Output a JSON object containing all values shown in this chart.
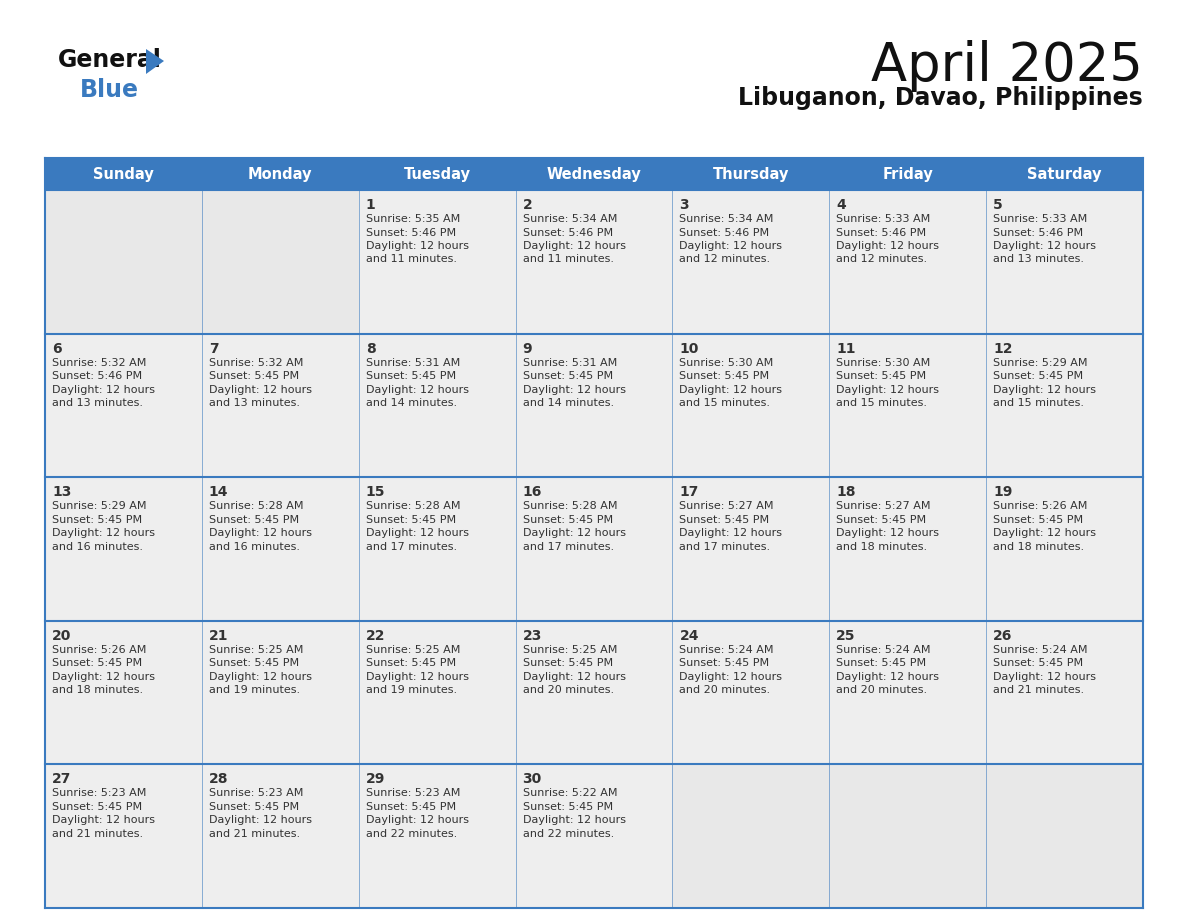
{
  "title": "April 2025",
  "subtitle": "Libuganon, Davao, Philippines",
  "header_color": "#3a7abf",
  "header_text_color": "#ffffff",
  "cell_bg_color": "#eeeeee",
  "empty_cell_bg_color": "#e8e8e8",
  "border_color": "#3a7abf",
  "text_color": "#333333",
  "days_of_week": [
    "Sunday",
    "Monday",
    "Tuesday",
    "Wednesday",
    "Thursday",
    "Friday",
    "Saturday"
  ],
  "calendar_data": [
    [
      null,
      null,
      {
        "day": 1,
        "sunrise": "5:35 AM",
        "sunset": "5:46 PM",
        "daylight_hours": 12,
        "daylight_minutes": 11
      },
      {
        "day": 2,
        "sunrise": "5:34 AM",
        "sunset": "5:46 PM",
        "daylight_hours": 12,
        "daylight_minutes": 11
      },
      {
        "day": 3,
        "sunrise": "5:34 AM",
        "sunset": "5:46 PM",
        "daylight_hours": 12,
        "daylight_minutes": 12
      },
      {
        "day": 4,
        "sunrise": "5:33 AM",
        "sunset": "5:46 PM",
        "daylight_hours": 12,
        "daylight_minutes": 12
      },
      {
        "day": 5,
        "sunrise": "5:33 AM",
        "sunset": "5:46 PM",
        "daylight_hours": 12,
        "daylight_minutes": 13
      }
    ],
    [
      {
        "day": 6,
        "sunrise": "5:32 AM",
        "sunset": "5:46 PM",
        "daylight_hours": 12,
        "daylight_minutes": 13
      },
      {
        "day": 7,
        "sunrise": "5:32 AM",
        "sunset": "5:45 PM",
        "daylight_hours": 12,
        "daylight_minutes": 13
      },
      {
        "day": 8,
        "sunrise": "5:31 AM",
        "sunset": "5:45 PM",
        "daylight_hours": 12,
        "daylight_minutes": 14
      },
      {
        "day": 9,
        "sunrise": "5:31 AM",
        "sunset": "5:45 PM",
        "daylight_hours": 12,
        "daylight_minutes": 14
      },
      {
        "day": 10,
        "sunrise": "5:30 AM",
        "sunset": "5:45 PM",
        "daylight_hours": 12,
        "daylight_minutes": 15
      },
      {
        "day": 11,
        "sunrise": "5:30 AM",
        "sunset": "5:45 PM",
        "daylight_hours": 12,
        "daylight_minutes": 15
      },
      {
        "day": 12,
        "sunrise": "5:29 AM",
        "sunset": "5:45 PM",
        "daylight_hours": 12,
        "daylight_minutes": 15
      }
    ],
    [
      {
        "day": 13,
        "sunrise": "5:29 AM",
        "sunset": "5:45 PM",
        "daylight_hours": 12,
        "daylight_minutes": 16
      },
      {
        "day": 14,
        "sunrise": "5:28 AM",
        "sunset": "5:45 PM",
        "daylight_hours": 12,
        "daylight_minutes": 16
      },
      {
        "day": 15,
        "sunrise": "5:28 AM",
        "sunset": "5:45 PM",
        "daylight_hours": 12,
        "daylight_minutes": 17
      },
      {
        "day": 16,
        "sunrise": "5:28 AM",
        "sunset": "5:45 PM",
        "daylight_hours": 12,
        "daylight_minutes": 17
      },
      {
        "day": 17,
        "sunrise": "5:27 AM",
        "sunset": "5:45 PM",
        "daylight_hours": 12,
        "daylight_minutes": 17
      },
      {
        "day": 18,
        "sunrise": "5:27 AM",
        "sunset": "5:45 PM",
        "daylight_hours": 12,
        "daylight_minutes": 18
      },
      {
        "day": 19,
        "sunrise": "5:26 AM",
        "sunset": "5:45 PM",
        "daylight_hours": 12,
        "daylight_minutes": 18
      }
    ],
    [
      {
        "day": 20,
        "sunrise": "5:26 AM",
        "sunset": "5:45 PM",
        "daylight_hours": 12,
        "daylight_minutes": 18
      },
      {
        "day": 21,
        "sunrise": "5:25 AM",
        "sunset": "5:45 PM",
        "daylight_hours": 12,
        "daylight_minutes": 19
      },
      {
        "day": 22,
        "sunrise": "5:25 AM",
        "sunset": "5:45 PM",
        "daylight_hours": 12,
        "daylight_minutes": 19
      },
      {
        "day": 23,
        "sunrise": "5:25 AM",
        "sunset": "5:45 PM",
        "daylight_hours": 12,
        "daylight_minutes": 20
      },
      {
        "day": 24,
        "sunrise": "5:24 AM",
        "sunset": "5:45 PM",
        "daylight_hours": 12,
        "daylight_minutes": 20
      },
      {
        "day": 25,
        "sunrise": "5:24 AM",
        "sunset": "5:45 PM",
        "daylight_hours": 12,
        "daylight_minutes": 20
      },
      {
        "day": 26,
        "sunrise": "5:24 AM",
        "sunset": "5:45 PM",
        "daylight_hours": 12,
        "daylight_minutes": 21
      }
    ],
    [
      {
        "day": 27,
        "sunrise": "5:23 AM",
        "sunset": "5:45 PM",
        "daylight_hours": 12,
        "daylight_minutes": 21
      },
      {
        "day": 28,
        "sunrise": "5:23 AM",
        "sunset": "5:45 PM",
        "daylight_hours": 12,
        "daylight_minutes": 21
      },
      {
        "day": 29,
        "sunrise": "5:23 AM",
        "sunset": "5:45 PM",
        "daylight_hours": 12,
        "daylight_minutes": 22
      },
      {
        "day": 30,
        "sunrise": "5:22 AM",
        "sunset": "5:45 PM",
        "daylight_hours": 12,
        "daylight_minutes": 22
      },
      null,
      null,
      null
    ]
  ],
  "logo_general_color": "#1a1a1a",
  "logo_blue_color": "#3a7abf",
  "logo_triangle_color": "#3a7abf"
}
